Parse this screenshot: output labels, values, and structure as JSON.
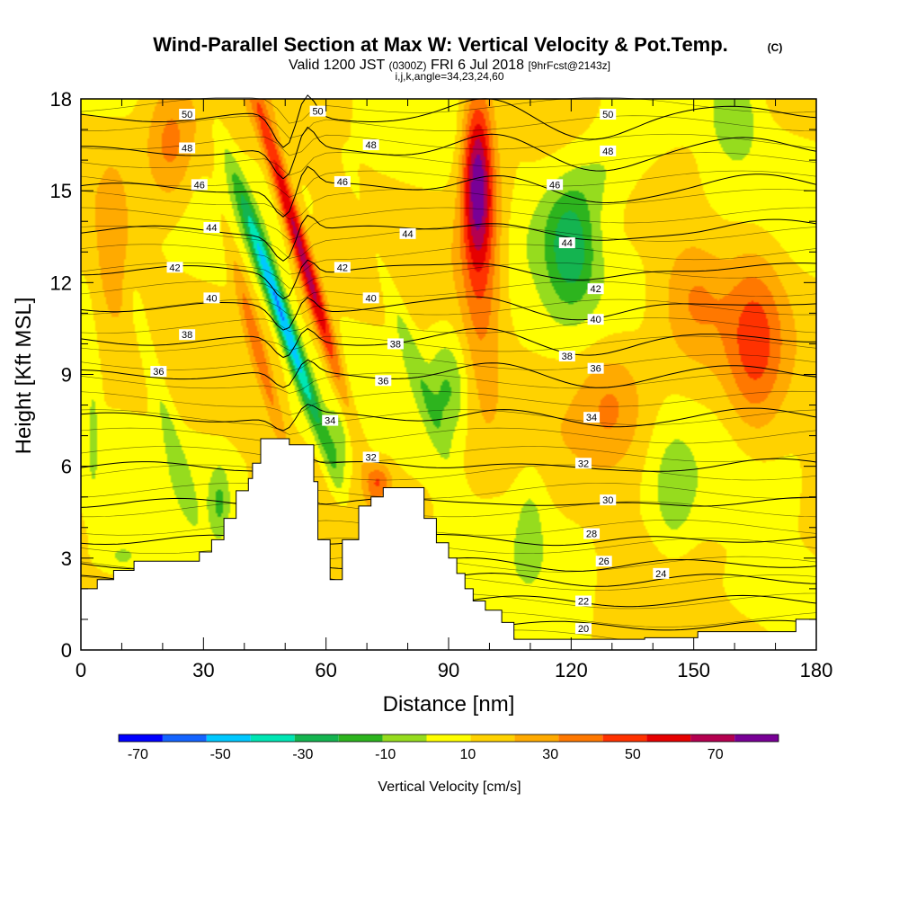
{
  "chart_data": {
    "type": "contour",
    "title": "Wind-Parallel Section at Max W: Vertical Velocity & Pot.Temp.",
    "title_mark": "(C)",
    "subtitle_line1": "Valid 1200 JST",
    "subtitle_z": "(0300Z)",
    "subtitle_date": "FRI 6 Jul 2018",
    "subtitle_fcst": "[9hrFcst@2143z]",
    "subtitle_line2": "i,j,k,angle=34,23,24,60",
    "xlabel": "Distance [nm]",
    "ylabel": "Height [Kft MSL]",
    "xlim": [
      0,
      180
    ],
    "ylim": [
      0,
      18
    ],
    "xticks": [
      "0",
      "30",
      "60",
      "90",
      "120",
      "150",
      "180"
    ],
    "yticks": [
      "0",
      "3",
      "6",
      "9",
      "12",
      "15",
      "18"
    ],
    "xtick_values": [
      0,
      30,
      60,
      90,
      120,
      150,
      180
    ],
    "ytick_values": [
      0,
      3,
      6,
      9,
      12,
      15,
      18
    ],
    "colorbar": {
      "label": "Vertical Velocity [cm/s]",
      "tick_labels": [
        "-70",
        "-50",
        "-30",
        "-10",
        "10",
        "30",
        "50",
        "70"
      ],
      "tick_values": [
        -70,
        -50,
        -30,
        -10,
        10,
        30,
        50,
        70
      ],
      "range": [
        -80,
        80
      ],
      "colors": [
        "#0000ff",
        "#1464ff",
        "#00c8ff",
        "#00e6b4",
        "#14b450",
        "#2db41e",
        "#96dc1e",
        "#ffff00",
        "#ffd200",
        "#ffaa00",
        "#ff7800",
        "#ff3200",
        "#e60000",
        "#b40050",
        "#780096"
      ]
    },
    "terrain": [
      [
        0,
        2
      ],
      [
        4,
        2
      ],
      [
        4,
        2.3
      ],
      [
        8,
        2.3
      ],
      [
        8,
        2.6
      ],
      [
        13,
        2.6
      ],
      [
        13,
        2.9
      ],
      [
        29,
        2.9
      ],
      [
        29,
        3.2
      ],
      [
        32,
        3.2
      ],
      [
        32,
        3.6
      ],
      [
        35,
        3.6
      ],
      [
        35,
        4.3
      ],
      [
        38,
        4.3
      ],
      [
        38,
        5.2
      ],
      [
        41,
        5.2
      ],
      [
        41,
        5.6
      ],
      [
        42,
        5.6
      ],
      [
        42,
        6.1
      ],
      [
        44,
        6.1
      ],
      [
        44,
        6.9
      ],
      [
        51,
        6.9
      ],
      [
        51,
        6.7
      ],
      [
        57,
        6.7
      ],
      [
        57,
        5.5
      ],
      [
        58,
        5.5
      ],
      [
        58,
        3.6
      ],
      [
        61,
        3.6
      ],
      [
        61,
        2.3
      ],
      [
        64,
        2.3
      ],
      [
        64,
        3.6
      ],
      [
        68,
        3.6
      ],
      [
        68,
        4.7
      ],
      [
        71,
        4.7
      ],
      [
        71,
        5.0
      ],
      [
        74,
        5.0
      ],
      [
        74,
        5.3
      ],
      [
        84,
        5.3
      ],
      [
        84,
        4.3
      ],
      [
        87,
        4.3
      ],
      [
        87,
        3.5
      ],
      [
        90,
        3.5
      ],
      [
        90,
        3.0
      ],
      [
        92,
        3.0
      ],
      [
        92,
        2.5
      ],
      [
        94,
        2.5
      ],
      [
        94,
        2.0
      ],
      [
        96,
        2.0
      ],
      [
        96,
        1.6
      ],
      [
        99,
        1.6
      ],
      [
        99,
        1.3
      ],
      [
        103,
        1.3
      ],
      [
        103,
        0.9
      ],
      [
        106,
        0.9
      ],
      [
        106,
        0.35
      ],
      [
        120,
        0.35
      ],
      [
        120,
        0.35
      ],
      [
        138,
        0.35
      ],
      [
        138,
        0.4
      ],
      [
        151,
        0.4
      ],
      [
        151,
        0.6
      ],
      [
        175,
        0.6
      ],
      [
        175,
        1.0
      ],
      [
        180,
        1.0
      ]
    ],
    "vv_cores": [
      {
        "x": 49,
        "y": 11,
        "v": -65,
        "sx": 2.2,
        "sy": 4.0,
        "tilt": -0.25
      },
      {
        "x": 54,
        "y": 13,
        "v": 60,
        "sx": 2.2,
        "sy": 5.0,
        "tilt": -0.22
      },
      {
        "x": 97,
        "y": 15.5,
        "v": 55,
        "sx": 3.5,
        "sy": 2.6,
        "tilt": 0
      },
      {
        "x": 98,
        "y": 13,
        "v": 30,
        "sx": 5,
        "sy": 4.5,
        "tilt": 0
      },
      {
        "x": 120,
        "y": 13,
        "v": -32,
        "sx": 6,
        "sy": 1.8,
        "tilt": 0
      },
      {
        "x": 126,
        "y": 15.5,
        "v": -20,
        "sx": 12,
        "sy": 2.5,
        "tilt": 0.5
      },
      {
        "x": 160,
        "y": 17.5,
        "v": -20,
        "sx": 6,
        "sy": 1.5,
        "tilt": 0
      },
      {
        "x": 165,
        "y": 10,
        "v": 30,
        "sx": 7,
        "sy": 3,
        "tilt": 0
      },
      {
        "x": 150,
        "y": 11.5,
        "v": 18,
        "sx": 8,
        "sy": 2,
        "tilt": 0
      },
      {
        "x": 90,
        "y": 8.5,
        "v": -22,
        "sx": 5,
        "sy": 1.8,
        "tilt": 0
      },
      {
        "x": 80,
        "y": 10,
        "v": -15,
        "sx": 2.5,
        "sy": 4,
        "tilt": -0.25
      },
      {
        "x": 73,
        "y": 5.5,
        "v": 28,
        "sx": 3,
        "sy": 0.6,
        "tilt": 0
      },
      {
        "x": 63,
        "y": 6.5,
        "v": -15,
        "sx": 3,
        "sy": 1.6,
        "tilt": 0
      },
      {
        "x": 43,
        "y": 10,
        "v": 25,
        "sx": 2,
        "sy": 4,
        "tilt": -0.2
      },
      {
        "x": 34,
        "y": 4.8,
        "v": -20,
        "sx": 2.5,
        "sy": 1.2,
        "tilt": 0
      },
      {
        "x": 20,
        "y": 8,
        "v": -14,
        "sx": 2.5,
        "sy": 4,
        "tilt": -0.2
      },
      {
        "x": 3,
        "y": 7,
        "v": -15,
        "sx": 1.5,
        "sy": 2,
        "tilt": 0
      },
      {
        "x": 22,
        "y": 16.5,
        "v": 25,
        "sx": 6,
        "sy": 2,
        "tilt": 0
      },
      {
        "x": 8,
        "y": 13,
        "v": 20,
        "sx": 4,
        "sy": 2.5,
        "tilt": 0
      },
      {
        "x": 130,
        "y": 8,
        "v": 20,
        "sx": 8,
        "sy": 2,
        "tilt": 0
      },
      {
        "x": 145,
        "y": 5,
        "v": -15,
        "sx": 5,
        "sy": 2,
        "tilt": 0
      },
      {
        "x": 165,
        "y": 2,
        "v": -12,
        "sx": 10,
        "sy": 1,
        "tilt": 0
      },
      {
        "x": 110,
        "y": 4.5,
        "v": -12,
        "sx": 4,
        "sy": 2,
        "tilt": 0
      },
      {
        "x": 10,
        "y": 3,
        "v": -14,
        "sx": 6,
        "sy": 0.6,
        "tilt": 0
      }
    ],
    "theta_contours": [
      {
        "label": "20",
        "h": 0.8
      },
      {
        "label": "22",
        "h": 1.6
      },
      {
        "label": "24",
        "h": 2.3
      },
      {
        "label": "26",
        "h": 2.8
      },
      {
        "label": "28",
        "h": 3.6
      },
      {
        "label": "30",
        "h": 4.8
      },
      {
        "label": "32",
        "h": 6.0
      },
      {
        "label": "34",
        "h": 7.6
      },
      {
        "label": "36",
        "h": 9.0
      },
      {
        "label": "38",
        "h": 10.1
      },
      {
        "label": "40",
        "h": 11.2
      },
      {
        "label": "42",
        "h": 12.4
      },
      {
        "label": "44",
        "h": 13.7
      },
      {
        "label": "46",
        "h": 15.1
      },
      {
        "label": "48",
        "h": 16.3
      },
      {
        "label": "50",
        "h": 17.4
      }
    ],
    "theta_labels": [
      {
        "text": "20",
        "x": 123,
        "y": 0.7
      },
      {
        "text": "22",
        "x": 123,
        "y": 1.6
      },
      {
        "text": "24",
        "x": 142,
        "y": 2.5
      },
      {
        "text": "26",
        "x": 128,
        "y": 2.9
      },
      {
        "text": "28",
        "x": 125,
        "y": 3.8
      },
      {
        "text": "30",
        "x": 129,
        "y": 4.9
      },
      {
        "text": "32",
        "x": 123,
        "y": 6.1
      },
      {
        "text": "32",
        "x": 71,
        "y": 6.3
      },
      {
        "text": "34",
        "x": 125,
        "y": 7.6
      },
      {
        "text": "34",
        "x": 61,
        "y": 7.5
      },
      {
        "text": "36",
        "x": 126,
        "y": 9.2
      },
      {
        "text": "36",
        "x": 74,
        "y": 8.8
      },
      {
        "text": "36",
        "x": 19,
        "y": 9.1
      },
      {
        "text": "38",
        "x": 119,
        "y": 9.6
      },
      {
        "text": "38",
        "x": 77,
        "y": 10.0
      },
      {
        "text": "38",
        "x": 26,
        "y": 10.3
      },
      {
        "text": "40",
        "x": 126,
        "y": 10.8
      },
      {
        "text": "40",
        "x": 71,
        "y": 11.5
      },
      {
        "text": "40",
        "x": 32,
        "y": 11.5
      },
      {
        "text": "42",
        "x": 126,
        "y": 11.8
      },
      {
        "text": "42",
        "x": 64,
        "y": 12.5
      },
      {
        "text": "42",
        "x": 23,
        "y": 12.5
      },
      {
        "text": "44",
        "x": 119,
        "y": 13.3
      },
      {
        "text": "44",
        "x": 80,
        "y": 13.6
      },
      {
        "text": "44",
        "x": 32,
        "y": 13.8
      },
      {
        "text": "46",
        "x": 116,
        "y": 15.2
      },
      {
        "text": "46",
        "x": 64,
        "y": 15.3
      },
      {
        "text": "46",
        "x": 29,
        "y": 15.2
      },
      {
        "text": "48",
        "x": 129,
        "y": 16.3
      },
      {
        "text": "48",
        "x": 71,
        "y": 16.5
      },
      {
        "text": "48",
        "x": 26,
        "y": 16.4
      },
      {
        "text": "50",
        "x": 129,
        "y": 17.5
      },
      {
        "text": "50",
        "x": 58,
        "y": 17.6
      },
      {
        "text": "50",
        "x": 26,
        "y": 17.5
      }
    ]
  }
}
